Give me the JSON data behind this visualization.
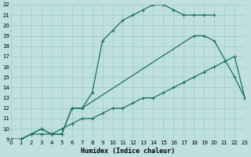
{
  "xlabel": "Humidex (Indice chaleur)",
  "bg_color": "#c0e0e0",
  "grid_color": "#a0cccc",
  "line_color": "#1a7060",
  "ylim": [
    9,
    22
  ],
  "xlim": [
    0,
    23
  ],
  "yticks": [
    9,
    10,
    11,
    12,
    13,
    14,
    15,
    16,
    17,
    18,
    19,
    20,
    21,
    22
  ],
  "xticks": [
    0,
    1,
    2,
    3,
    4,
    5,
    6,
    7,
    8,
    9,
    10,
    11,
    12,
    13,
    14,
    15,
    16,
    17,
    18,
    19,
    20,
    21,
    22,
    23
  ],
  "curve1_x": [
    0,
    1,
    2,
    3,
    4,
    5,
    6,
    7,
    8,
    9,
    10,
    11,
    12,
    13,
    14,
    15,
    16,
    17,
    18,
    19,
    20
  ],
  "curve1_y": [
    9,
    9,
    9.5,
    10,
    9.5,
    9.5,
    12,
    12,
    13.5,
    18.5,
    19.5,
    20.5,
    21,
    21.5,
    22,
    22,
    21.5,
    21,
    21,
    21,
    21
  ],
  "curve2_x": [
    0,
    1,
    2,
    3,
    4,
    5,
    6,
    7,
    18,
    19,
    20,
    22,
    23
  ],
  "curve2_y": [
    9,
    9,
    9.5,
    10,
    9.5,
    9.5,
    12,
    12,
    19,
    19,
    18.5,
    15,
    13
  ],
  "curve3_x": [
    0,
    1,
    2,
    3,
    4,
    5,
    6,
    7,
    8,
    9,
    10,
    11,
    12,
    13,
    14,
    15,
    16,
    17,
    18,
    19,
    20,
    21,
    22,
    23
  ],
  "curve3_y": [
    9,
    9,
    9.5,
    9.5,
    9.5,
    10,
    10.5,
    11,
    11,
    11.5,
    12,
    12,
    12.5,
    13,
    13,
    13.5,
    14,
    14.5,
    15,
    15.5,
    16,
    16.5,
    17,
    13
  ]
}
